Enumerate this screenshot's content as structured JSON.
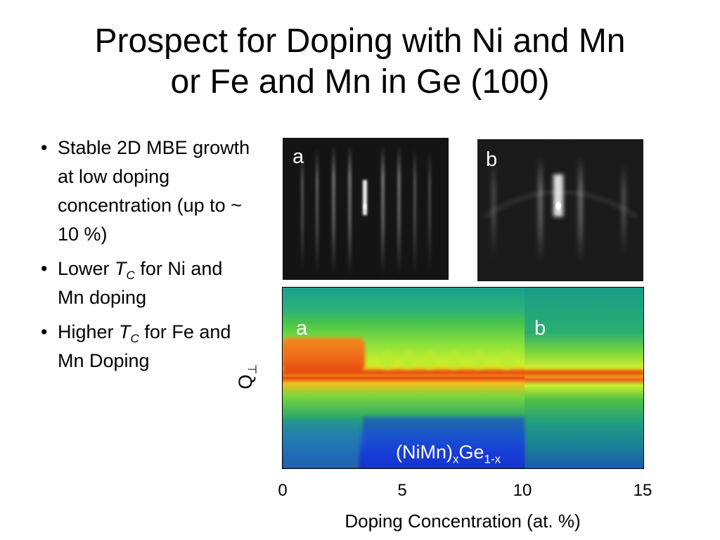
{
  "title": {
    "line1": "Prospect for Doping with Ni and Mn",
    "line2": "or Fe and Mn in Ge (100)"
  },
  "bullets": [
    {
      "text": "Stable 2D MBE growth at low doping concentration (up to ~ 10 %)"
    },
    {
      "pre": "Lower ",
      "T": "T",
      "sub": "C",
      "post": " for Ni and Mn doping"
    },
    {
      "pre": "Higher ",
      "T": "T",
      "sub": "C",
      "post": " for Fe and Mn Doping"
    }
  ],
  "rheed_images": [
    {
      "label": "a"
    },
    {
      "label": "b"
    }
  ],
  "colormap": {
    "labels": [
      "a",
      "b"
    ],
    "ylabel_main": "Q",
    "ylabel_sub": "⊥",
    "formula_pre": "(NiMn)",
    "formula_sub1": "x",
    "formula_mid": "Ge",
    "formula_sub2": "1-x",
    "xlabel": "Doping Concentration (at. %)",
    "xticks": [
      "0",
      "5",
      "10",
      "15"
    ],
    "xlim": [
      0,
      15
    ]
  }
}
